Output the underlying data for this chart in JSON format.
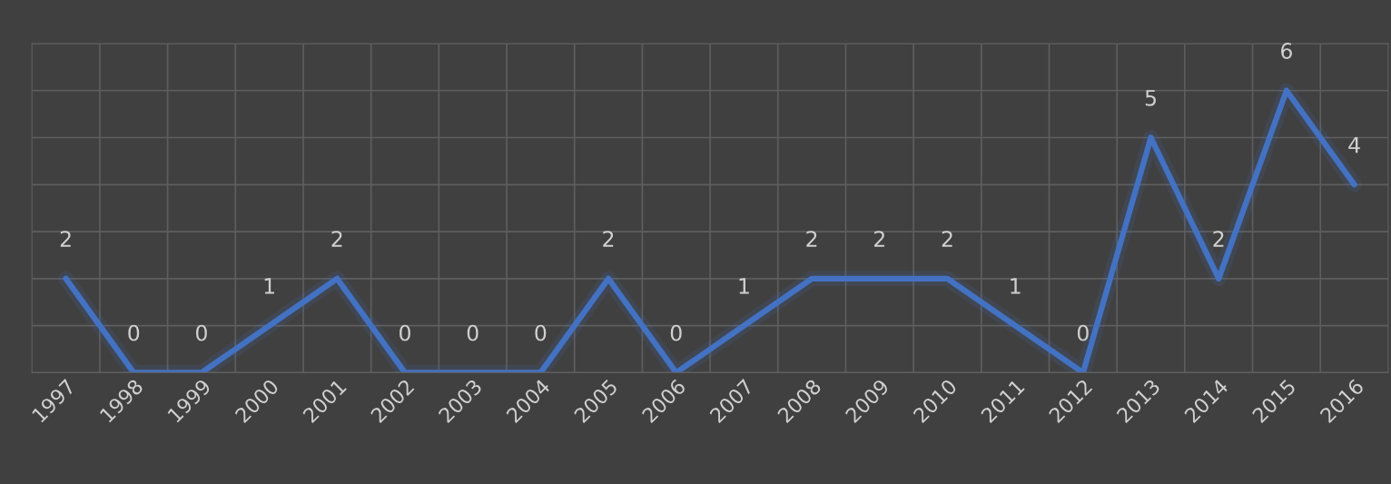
{
  "chart_data": {
    "type": "line",
    "categories": [
      "1997",
      "1998",
      "1999",
      "2000",
      "2001",
      "2002",
      "2003",
      "2004",
      "2005",
      "2006",
      "2007",
      "2008",
      "2009",
      "2010",
      "2011",
      "2012",
      "2013",
      "2014",
      "2015",
      "2016"
    ],
    "series": [
      {
        "color": "#4472c4",
        "values": [
          2,
          0,
          0,
          1,
          2,
          0,
          0,
          0,
          2,
          0,
          1,
          2,
          2,
          2,
          1,
          0,
          5,
          2,
          6,
          4
        ]
      }
    ],
    "ylim": [
      0,
      7
    ],
    "yticks": [
      {
        "value": 0,
        "label": null
      },
      {
        "value": 1,
        "label": null
      },
      {
        "value": 2,
        "label": null
      },
      {
        "value": 3,
        "label": null
      },
      {
        "value": 4,
        "label": null
      },
      {
        "value": 5,
        "label": null
      },
      {
        "value": 6,
        "label": null
      },
      {
        "value": 7,
        "label": null
      }
    ],
    "tick_labels": "x",
    "grid": true,
    "data_labels": true,
    "marker": "none",
    "line_style": "solid",
    "legend": false
  }
}
